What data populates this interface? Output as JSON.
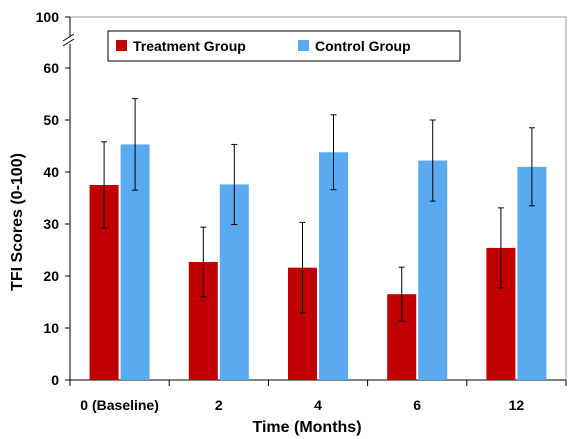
{
  "chart_data": {
    "type": "bar",
    "xlabel": "Time (Months)",
    "ylabel": "TFI Scores (0-100)",
    "categories": [
      "0 (Baseline)",
      "2",
      "4",
      "6",
      "12"
    ],
    "ylim": [
      0,
      60
    ],
    "yticks": [
      0,
      10,
      20,
      30,
      40,
      50,
      60
    ],
    "y_break_label": "100",
    "legend_position": "top",
    "series": [
      {
        "name": "Treatment Group",
        "color": "#c00000",
        "values": [
          37.5,
          22.7,
          21.6,
          16.5,
          25.4
        ],
        "error": [
          8.3,
          6.7,
          8.7,
          5.2,
          7.7
        ]
      },
      {
        "name": "Control Group",
        "color": "#5aaaf0",
        "values": [
          45.3,
          37.6,
          43.8,
          42.2,
          41.0
        ],
        "error": [
          8.8,
          7.7,
          7.2,
          7.8,
          7.5
        ]
      }
    ],
    "grid": false
  }
}
